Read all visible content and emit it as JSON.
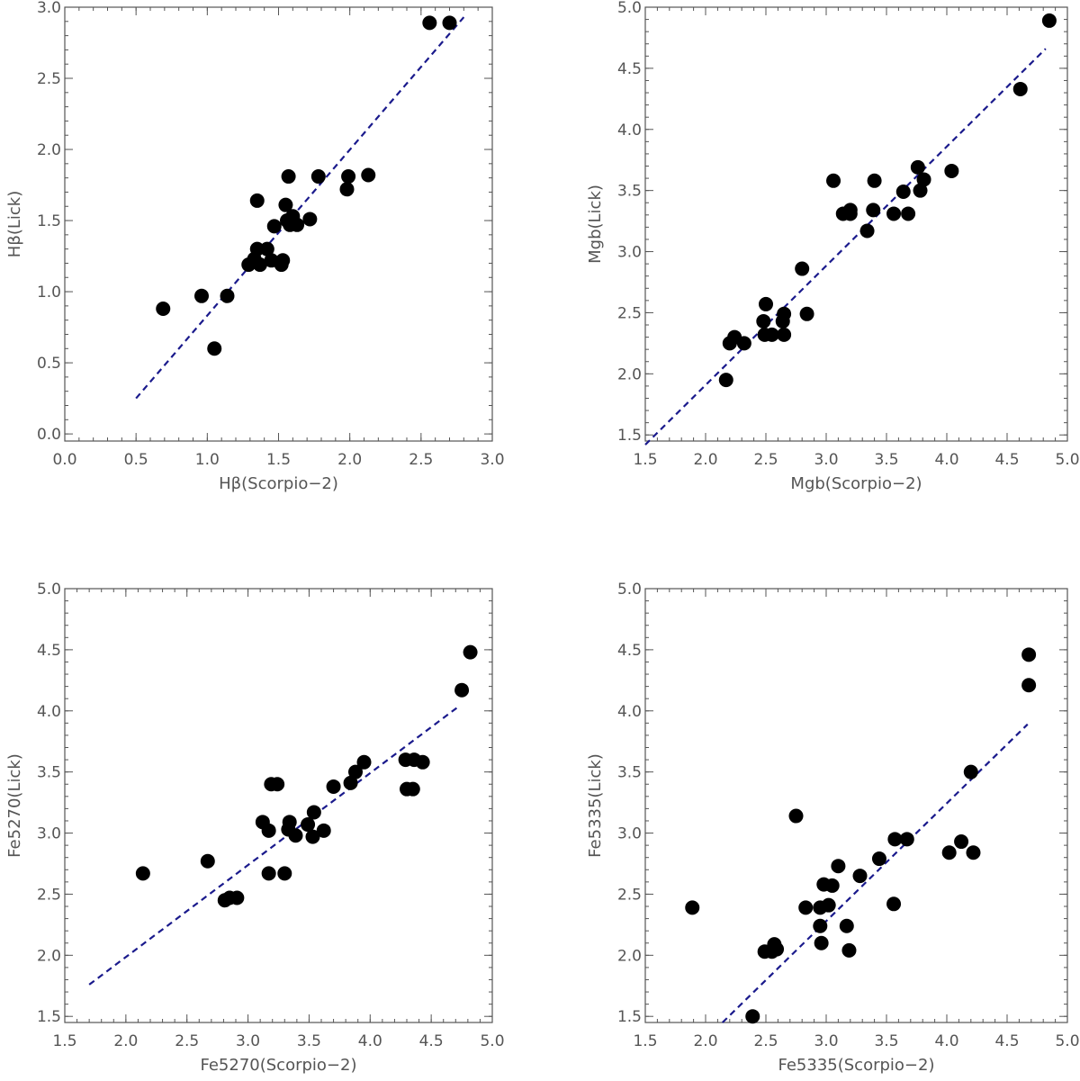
{
  "chart_data": [
    {
      "type": "scatter",
      "title": "",
      "xlabel": "Hβ(Scorpio−2)",
      "ylabel": "Hβ(Lick)",
      "xlim": [
        0.0,
        3.0
      ],
      "ylim": [
        -0.05,
        3.0
      ],
      "xticks": [
        "0.0",
        "0.5",
        "1.0",
        "1.5",
        "2.0",
        "2.5",
        "3.0"
      ],
      "yticks": [
        "0.0",
        "0.5",
        "1.0",
        "1.5",
        "2.0",
        "2.5",
        "3.0"
      ],
      "points": [
        [
          0.69,
          0.88
        ],
        [
          0.96,
          0.97
        ],
        [
          1.05,
          0.6
        ],
        [
          1.14,
          0.97
        ],
        [
          1.29,
          1.19
        ],
        [
          1.33,
          1.23
        ],
        [
          1.35,
          1.64
        ],
        [
          1.35,
          1.3
        ],
        [
          1.37,
          1.19
        ],
        [
          1.42,
          1.3
        ],
        [
          1.45,
          1.22
        ],
        [
          1.47,
          1.46
        ],
        [
          1.52,
          1.19
        ],
        [
          1.53,
          1.22
        ],
        [
          1.55,
          1.61
        ],
        [
          1.56,
          1.5
        ],
        [
          1.57,
          1.81
        ],
        [
          1.58,
          1.47
        ],
        [
          1.6,
          1.53
        ],
        [
          1.63,
          1.47
        ],
        [
          1.72,
          1.51
        ],
        [
          1.78,
          1.81
        ],
        [
          1.98,
          1.72
        ],
        [
          1.99,
          1.81
        ],
        [
          2.13,
          1.82
        ],
        [
          2.56,
          2.89
        ],
        [
          2.7,
          2.89
        ]
      ],
      "fit_line": {
        "x": [
          0.5,
          2.8
        ],
        "y": [
          0.25,
          2.93
        ]
      },
      "marker_color": "#000000",
      "line_color": "#1a1a8c"
    },
    {
      "type": "scatter",
      "title": "",
      "xlabel": "Mgb(Scorpio−2)",
      "ylabel": "Mgb(Lick)",
      "xlim": [
        1.5,
        5.0
      ],
      "ylim": [
        1.45,
        5.0
      ],
      "xticks": [
        "1.5",
        "2.0",
        "2.5",
        "3.0",
        "3.5",
        "4.0",
        "4.5",
        "5.0"
      ],
      "yticks": [
        "1.5",
        "2.0",
        "2.5",
        "3.0",
        "3.5",
        "4.0",
        "4.5",
        "5.0"
      ],
      "points": [
        [
          2.17,
          1.95
        ],
        [
          2.2,
          2.25
        ],
        [
          2.24,
          2.3
        ],
        [
          2.32,
          2.25
        ],
        [
          2.48,
          2.43
        ],
        [
          2.49,
          2.32
        ],
        [
          2.5,
          2.57
        ],
        [
          2.55,
          2.32
        ],
        [
          2.64,
          2.43
        ],
        [
          2.65,
          2.49
        ],
        [
          2.65,
          2.32
        ],
        [
          2.8,
          2.86
        ],
        [
          2.84,
          2.49
        ],
        [
          3.06,
          3.58
        ],
        [
          3.14,
          3.31
        ],
        [
          3.2,
          3.34
        ],
        [
          3.2,
          3.31
        ],
        [
          3.34,
          3.17
        ],
        [
          3.39,
          3.34
        ],
        [
          3.4,
          3.58
        ],
        [
          3.56,
          3.31
        ],
        [
          3.64,
          3.49
        ],
        [
          3.68,
          3.31
        ],
        [
          3.76,
          3.69
        ],
        [
          3.78,
          3.5
        ],
        [
          3.81,
          3.59
        ],
        [
          4.04,
          3.66
        ],
        [
          4.61,
          4.33
        ],
        [
          4.85,
          4.89
        ]
      ],
      "fit_line": {
        "x": [
          1.5,
          4.82
        ],
        "y": [
          1.42,
          4.66
        ]
      },
      "marker_color": "#000000",
      "line_color": "#1a1a8c"
    },
    {
      "type": "scatter",
      "title": "",
      "xlabel": "Fe5270(Scorpio−2)",
      "ylabel": "Fe5270(Lick)",
      "xlim": [
        1.5,
        5.0
      ],
      "ylim": [
        1.45,
        5.0
      ],
      "xticks": [
        "1.5",
        "2.0",
        "2.5",
        "3.0",
        "3.5",
        "4.0",
        "4.5",
        "5.0"
      ],
      "yticks": [
        "1.5",
        "2.0",
        "2.5",
        "3.0",
        "3.5",
        "4.0",
        "4.5",
        "5.0"
      ],
      "points": [
        [
          2.14,
          2.67
        ],
        [
          2.67,
          2.77
        ],
        [
          2.81,
          2.45
        ],
        [
          2.85,
          2.47
        ],
        [
          2.91,
          2.47
        ],
        [
          3.12,
          3.09
        ],
        [
          3.17,
          3.02
        ],
        [
          3.17,
          2.67
        ],
        [
          3.19,
          3.4
        ],
        [
          3.24,
          3.4
        ],
        [
          3.3,
          2.67
        ],
        [
          3.33,
          3.03
        ],
        [
          3.34,
          3.09
        ],
        [
          3.39,
          2.98
        ],
        [
          3.49,
          3.07
        ],
        [
          3.53,
          2.97
        ],
        [
          3.54,
          3.17
        ],
        [
          3.62,
          3.02
        ],
        [
          3.7,
          3.38
        ],
        [
          3.84,
          3.41
        ],
        [
          3.88,
          3.5
        ],
        [
          3.95,
          3.58
        ],
        [
          4.29,
          3.6
        ],
        [
          4.3,
          3.36
        ],
        [
          4.35,
          3.36
        ],
        [
          4.36,
          3.6
        ],
        [
          4.43,
          3.58
        ],
        [
          4.75,
          4.17
        ],
        [
          4.82,
          4.48
        ]
      ],
      "fit_line": {
        "x": [
          1.7,
          4.73
        ],
        "y": [
          1.76,
          4.04
        ]
      },
      "marker_color": "#000000",
      "line_color": "#1a1a8c"
    },
    {
      "type": "scatter",
      "title": "",
      "xlabel": "Fe5335(Scorpio−2)",
      "ylabel": "Fe5335(Lick)",
      "xlim": [
        1.5,
        5.0
      ],
      "ylim": [
        1.45,
        5.0
      ],
      "xticks": [
        "1.5",
        "2.0",
        "2.5",
        "3.0",
        "3.5",
        "4.0",
        "4.5",
        "5.0"
      ],
      "yticks": [
        "1.5",
        "2.0",
        "2.5",
        "3.0",
        "3.5",
        "4.0",
        "4.5",
        "5.0"
      ],
      "points": [
        [
          1.89,
          2.39
        ],
        [
          2.39,
          1.5
        ],
        [
          2.49,
          2.03
        ],
        [
          2.55,
          2.03
        ],
        [
          2.57,
          2.09
        ],
        [
          2.59,
          2.05
        ],
        [
          2.75,
          3.14
        ],
        [
          2.83,
          2.39
        ],
        [
          2.95,
          2.24
        ],
        [
          2.95,
          2.39
        ],
        [
          2.96,
          2.1
        ],
        [
          2.98,
          2.58
        ],
        [
          3.02,
          2.41
        ],
        [
          3.05,
          2.57
        ],
        [
          3.1,
          2.73
        ],
        [
          3.17,
          2.24
        ],
        [
          3.19,
          2.04
        ],
        [
          3.28,
          2.65
        ],
        [
          3.44,
          2.79
        ],
        [
          3.56,
          2.42
        ],
        [
          3.57,
          2.95
        ],
        [
          3.67,
          2.95
        ],
        [
          4.02,
          2.84
        ],
        [
          4.12,
          2.93
        ],
        [
          4.2,
          3.5
        ],
        [
          4.22,
          2.84
        ],
        [
          4.68,
          4.21
        ],
        [
          4.68,
          4.46
        ]
      ],
      "fit_line": {
        "x": [
          2.14,
          4.67
        ],
        "y": [
          1.45,
          3.89
        ]
      },
      "marker_color": "#000000",
      "line_color": "#1a1a8c"
    }
  ]
}
